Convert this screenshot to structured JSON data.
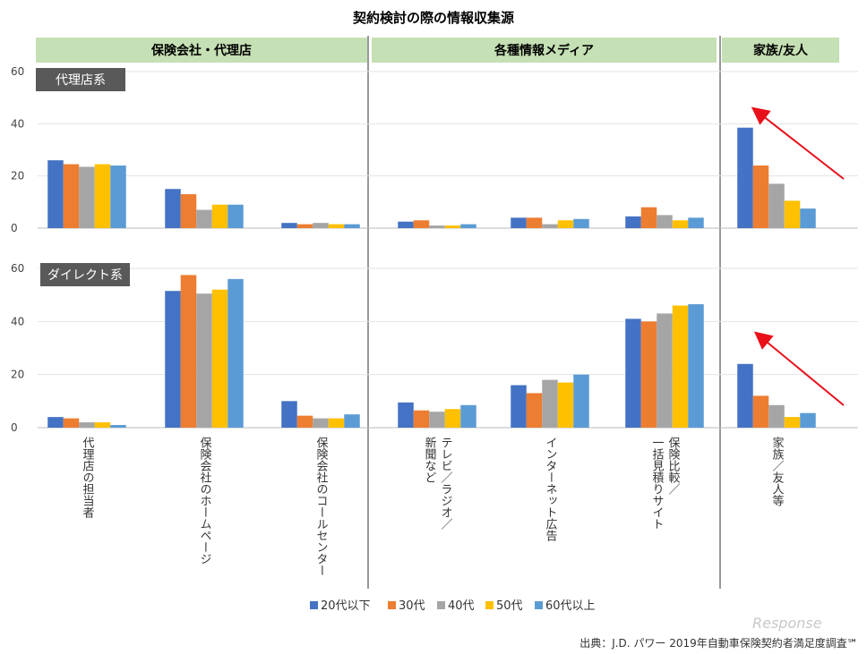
{
  "chart_data": {
    "type": "bar",
    "title": "契約検討の際の情報収集源",
    "groups": [
      "保険会社・代理店",
      "各種情報メディア",
      "家族/友人"
    ],
    "categories": [
      [
        "代理店の担当者"
      ],
      [
        "保険会社のホームページ"
      ],
      [
        "保険会社のコールセンター"
      ],
      [
        "テレビ／ラジオ／",
        "新聞など"
      ],
      [
        "インターネット広告"
      ],
      [
        "保険比較／",
        "一括見積りサイト"
      ],
      [
        "家族／友人等"
      ]
    ],
    "category_groups": [
      0,
      0,
      0,
      1,
      1,
      1,
      2
    ],
    "series": [
      {
        "name": "20代以下",
        "color": "#4472C4"
      },
      {
        "name": "30代",
        "color": "#ED7D31"
      },
      {
        "name": "40代",
        "color": "#A5A5A5"
      },
      {
        "name": "50代",
        "color": "#FFC000"
      },
      {
        "name": "60代以上",
        "color": "#5B9BD5"
      }
    ],
    "panels": [
      {
        "label": "代理店系",
        "ylim": [
          0,
          60
        ],
        "yticks": [
          "0",
          "20",
          "40",
          "60"
        ],
        "values": [
          [
            26,
            24.5,
            23.5,
            24.5,
            24
          ],
          [
            15,
            13,
            7,
            9,
            9
          ],
          [
            2,
            1.5,
            2,
            1.5,
            1.5
          ],
          [
            2.5,
            3,
            1,
            1,
            1.5
          ],
          [
            4,
            4,
            1.5,
            3,
            3.5
          ],
          [
            4.5,
            8,
            5,
            3,
            4
          ],
          [
            38.5,
            24,
            17,
            10.5,
            7.5
          ]
        ]
      },
      {
        "label": "ダイレクト系",
        "ylim": [
          0,
          60
        ],
        "yticks": [
          "0",
          "20",
          "40",
          "60"
        ],
        "values": [
          [
            4,
            3.5,
            2,
            2,
            1
          ],
          [
            51.5,
            57.5,
            50.5,
            52,
            56
          ],
          [
            10,
            4.5,
            3.5,
            3.5,
            5
          ],
          [
            9.5,
            6.5,
            6,
            7,
            8.5
          ],
          [
            16,
            13,
            18,
            17,
            20
          ],
          [
            41,
            40,
            43,
            46,
            46.5
          ],
          [
            24,
            12,
            8.5,
            4,
            5.5
          ]
        ]
      }
    ],
    "grid": true,
    "legend_position": "bottom"
  },
  "source": "出典：J.D. パワー 2019年自動車保険契約者満足度調査℠",
  "watermark": "Response"
}
